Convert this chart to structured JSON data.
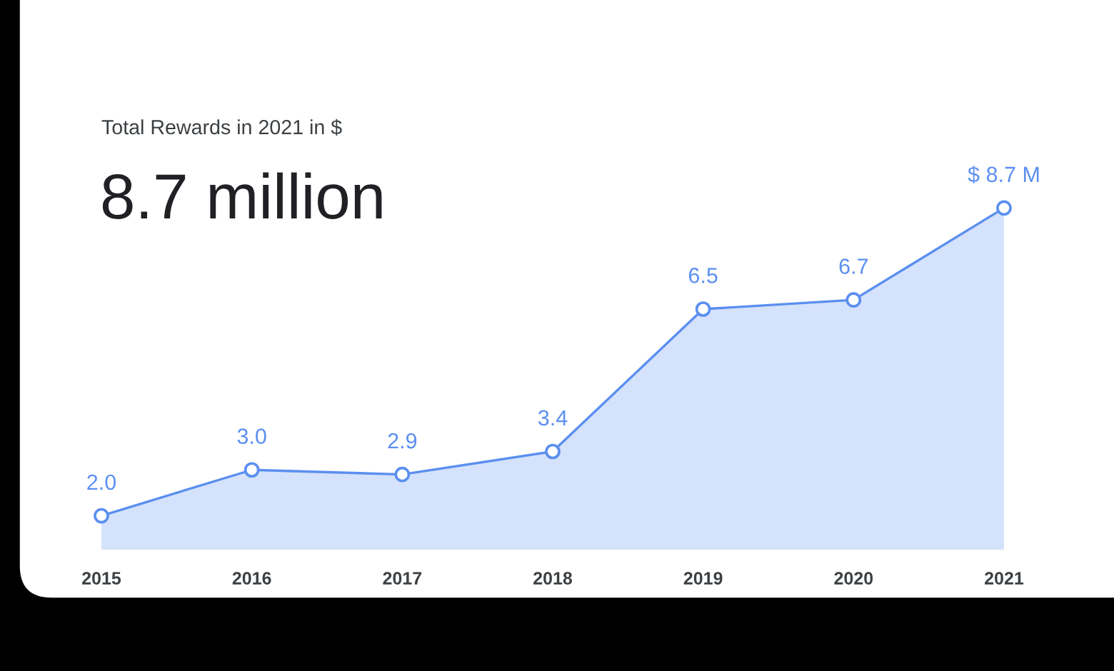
{
  "chart_data": {
    "type": "area",
    "title": "Total Rewards in 2021 in $",
    "subtitle": "8.7 million",
    "categories": [
      "2015",
      "2016",
      "2017",
      "2018",
      "2019",
      "2020",
      "2021"
    ],
    "series": [
      {
        "color": "#5b8ff0",
        "values": [
          2.0,
          3.0,
          2.9,
          3.4,
          6.5,
          6.7,
          8.7
        ],
        "value_labels": [
          "2.0",
          "3.0",
          "2.9",
          "3.4",
          "6.5",
          "6.7",
          "$ 8.7 M"
        ]
      }
    ],
    "marker": "circle",
    "tick_labels": "x"
  }
}
